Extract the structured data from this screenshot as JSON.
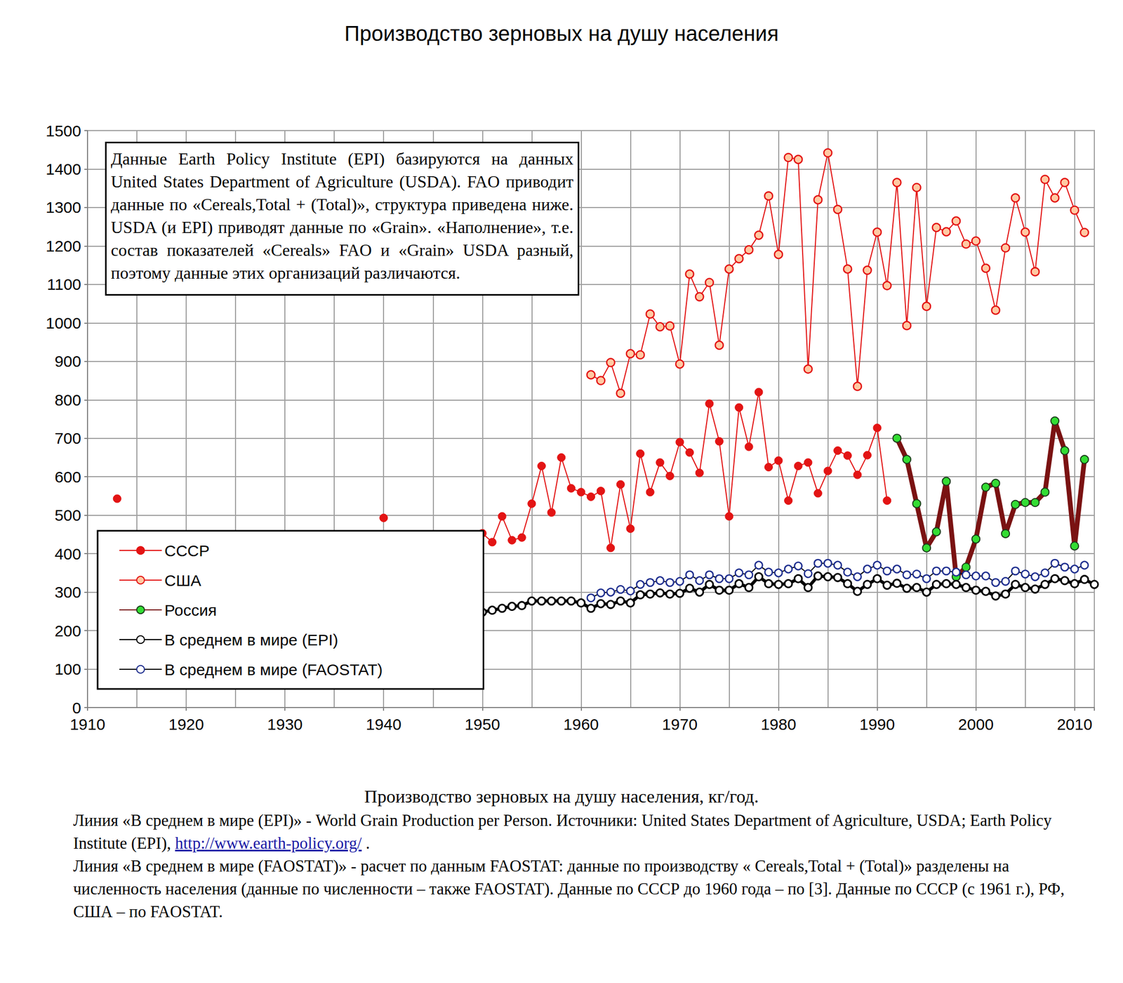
{
  "chart_data": {
    "type": "line",
    "title": "Производство зерновых на душу населения",
    "annotations": [
      "Данные Earth Policy Institute (EPI) базируются на данных United States Department of Agriculture (USDA). FAO приводит данные по «Cereals,Total + (Total)», структура приведена ниже. USDA (и EPI) приводят данные по «Grain». «Наполнение», т.е. состав показателей «Cereals» FAO и «Grain» USDA разный, поэтому данные этих организаций различаются."
    ],
    "caption": {
      "title": "Производство зерновых на душу населения, кг/год.",
      "paragraphs": [
        "Линия «В среднем в мире (EPI)» - World Grain Production per Person.  Источники: United States Department of Agriculture, USDA; Earth Policy Institute (EPI), http://www.earth-policy.org/ .",
        "Линия «В среднем в мире (FAOSTAT)» - расчет по данным FAOSTAT: данные по производству « Cereals,Total + (Total)» разделены на численность населения (данные по численности – также FAOSTAT). Данные по СССР до 1960 года – по [3]. Данные  по СССР (с 1961 г.), РФ, США – по FAOSTAT."
      ],
      "link": "http://www.earth-policy.org/"
    },
    "xlim": [
      1910,
      2012
    ],
    "xticks": [
      1910,
      1920,
      1930,
      1940,
      1950,
      1960,
      1970,
      1980,
      1990,
      2000,
      2010
    ],
    "ylim": [
      0,
      1500
    ],
    "yticks": [
      0,
      100,
      200,
      300,
      400,
      500,
      600,
      700,
      800,
      900,
      1000,
      1100,
      1200,
      1300,
      1400,
      1500
    ],
    "grid": true,
    "legend": "lower left",
    "series": [
      {
        "name": "СССР",
        "color": "#e31414",
        "marker": "filled_circle",
        "line_style": "thin",
        "x": [
          1913,
          1914,
          1940,
          1941,
          1950,
          1951,
          1952,
          1953,
          1954,
          1955,
          1956,
          1957,
          1958,
          1959,
          1960,
          1961,
          1962,
          1963,
          1964,
          1965,
          1966,
          1967,
          1968,
          1969,
          1970,
          1971,
          1972,
          1973,
          1974,
          1975,
          1976,
          1977,
          1978,
          1979,
          1980,
          1981,
          1982,
          1983,
          1984,
          1985,
          1986,
          1987,
          1988,
          1989,
          1990,
          1991
        ],
        "values": [
          543,
          null,
          493,
          null,
          453,
          430,
          497,
          435,
          442,
          530,
          628,
          507,
          650,
          570,
          560,
          548,
          563,
          415,
          580,
          465,
          660,
          560,
          637,
          602,
          690,
          663,
          610,
          790,
          692,
          497,
          780,
          678,
          820,
          625,
          642,
          538,
          628,
          637,
          557,
          615,
          668,
          655,
          605,
          656,
          727,
          538
        ]
      },
      {
        "name": "США",
        "color": "#e31414",
        "marker": "peach_circle",
        "line_style": "thin",
        "x": [
          1961,
          1962,
          1963,
          1964,
          1965,
          1966,
          1967,
          1968,
          1969,
          1970,
          1971,
          1972,
          1973,
          1974,
          1975,
          1976,
          1977,
          1978,
          1979,
          1980,
          1981,
          1982,
          1983,
          1984,
          1985,
          1986,
          1987,
          1988,
          1989,
          1990,
          1991,
          1992,
          1993,
          1994,
          1995,
          1996,
          1997,
          1998,
          1999,
          2000,
          2001,
          2002,
          2003,
          2004,
          2005,
          2006,
          2007,
          2008,
          2009,
          2010,
          2011
        ],
        "values": [
          865,
          850,
          897,
          817,
          920,
          917,
          1023,
          990,
          992,
          893,
          1127,
          1068,
          1105,
          942,
          1140,
          1167,
          1190,
          1228,
          1330,
          1178,
          1430,
          1425,
          880,
          1320,
          1442,
          1295,
          1140,
          835,
          1137,
          1236,
          1097,
          1365,
          993,
          1352,
          1043,
          1248,
          1237,
          1265,
          1205,
          1213,
          1142,
          1033,
          1195,
          1325,
          1236,
          1133,
          1373,
          1325,
          1365,
          1293,
          1235
        ]
      },
      {
        "name": "Россия",
        "color": "#7a1212",
        "marker": "green_circle",
        "line_style": "heavy",
        "x": [
          1992,
          1993,
          1994,
          1995,
          1996,
          1997,
          1998,
          1999,
          2000,
          2001,
          2002,
          2003,
          2004,
          2005,
          2006,
          2007,
          2008,
          2009,
          2010,
          2011
        ],
        "values": [
          700,
          645,
          530,
          415,
          457,
          588,
          340,
          365,
          438,
          573,
          583,
          452,
          528,
          533,
          533,
          560,
          745,
          668,
          420,
          645
        ]
      },
      {
        "name": "В среднем в мире (EPI)",
        "color": "#000000",
        "marker": "white_circle",
        "line_style": "thick",
        "x": [
          1950,
          1951,
          1952,
          1953,
          1954,
          1955,
          1956,
          1957,
          1958,
          1959,
          1960,
          1961,
          1962,
          1963,
          1964,
          1965,
          1966,
          1967,
          1968,
          1969,
          1970,
          1971,
          1972,
          1973,
          1974,
          1975,
          1976,
          1977,
          1978,
          1979,
          1980,
          1981,
          1982,
          1983,
          1984,
          1985,
          1986,
          1987,
          1988,
          1989,
          1990,
          1991,
          1992,
          1993,
          1994,
          1995,
          1996,
          1997,
          1998,
          1999,
          2000,
          2001,
          2002,
          2003,
          2004,
          2005,
          2006,
          2007,
          2008,
          2009,
          2010,
          2011,
          2012
        ],
        "values": [
          248,
          253,
          258,
          263,
          265,
          277,
          277,
          277,
          277,
          277,
          272,
          258,
          270,
          268,
          277,
          272,
          293,
          295,
          298,
          295,
          297,
          310,
          300,
          320,
          305,
          305,
          322,
          312,
          340,
          322,
          320,
          322,
          335,
          312,
          342,
          340,
          338,
          322,
          302,
          320,
          335,
          318,
          323,
          310,
          312,
          300,
          320,
          322,
          320,
          312,
          305,
          302,
          290,
          295,
          320,
          312,
          308,
          320,
          335,
          330,
          322,
          333,
          320
        ]
      },
      {
        "name": "В среднем в мире (FAOSTAT)",
        "color": "#000000",
        "marker": "navy_ring",
        "line_style": "thin",
        "x": [
          1961,
          1962,
          1963,
          1964,
          1965,
          1966,
          1967,
          1968,
          1969,
          1970,
          1971,
          1972,
          1973,
          1974,
          1975,
          1976,
          1977,
          1978,
          1979,
          1980,
          1981,
          1982,
          1983,
          1984,
          1985,
          1986,
          1987,
          1988,
          1989,
          1990,
          1991,
          1992,
          1993,
          1994,
          1995,
          1996,
          1997,
          1998,
          1999,
          2000,
          2001,
          2002,
          2003,
          2004,
          2005,
          2006,
          2007,
          2008,
          2009,
          2010,
          2011
        ],
        "values": [
          285,
          298,
          300,
          307,
          303,
          320,
          325,
          330,
          325,
          328,
          345,
          330,
          345,
          335,
          335,
          350,
          345,
          370,
          352,
          350,
          360,
          368,
          348,
          375,
          375,
          370,
          352,
          340,
          360,
          370,
          355,
          360,
          345,
          347,
          335,
          355,
          355,
          352,
          345,
          342,
          342,
          325,
          328,
          355,
          347,
          340,
          350,
          375,
          365,
          360,
          370
        ]
      }
    ]
  }
}
